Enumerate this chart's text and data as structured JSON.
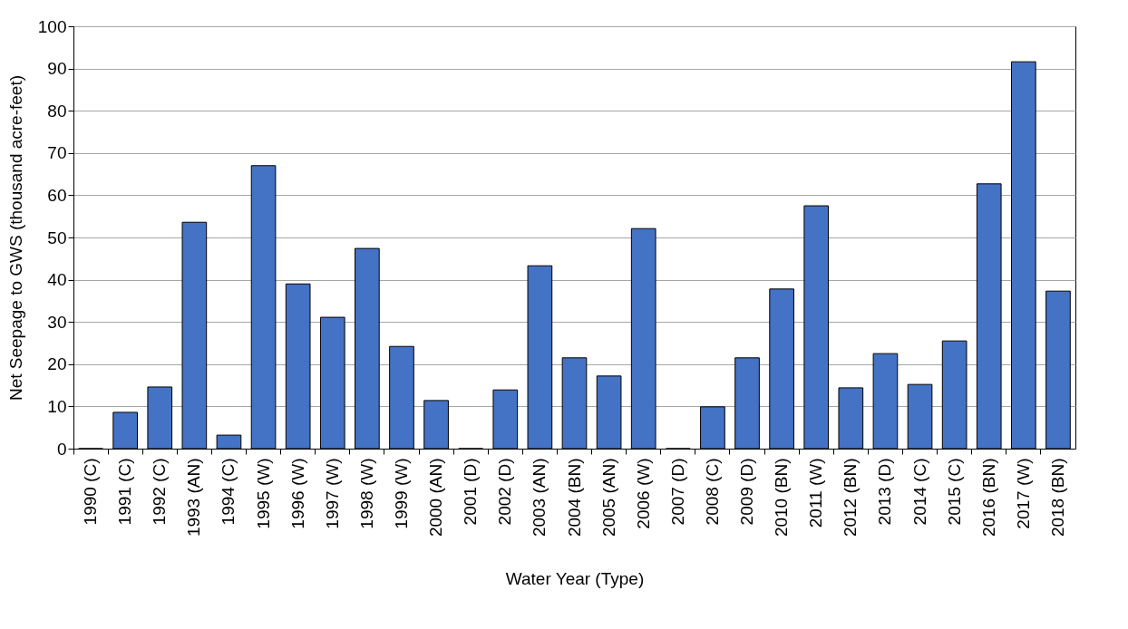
{
  "chart_data": {
    "type": "bar",
    "xlabel": "Water Year (Type)",
    "ylabel": "Net Seepage to GWS (thousand acre-feet)",
    "categories": [
      "1990 (C)",
      "1991 (C)",
      "1992 (C)",
      "1993 (AN)",
      "1994 (C)",
      "1995 (W)",
      "1996 (W)",
      "1997 (W)",
      "1998 (W)",
      "1999 (W)",
      "2000 (AN)",
      "2001 (D)",
      "2002 (D)",
      "2003 (AN)",
      "2004 (BN)",
      "2005 (AN)",
      "2006 (W)",
      "2007 (D)",
      "2008 (C)",
      "2009 (D)",
      "2010 (BN)",
      "2011 (W)",
      "2012 (BN)",
      "2013 (D)",
      "2014 (C)",
      "2015 (C)",
      "2016 (BN)",
      "2017 (W)",
      "2018 (BN)"
    ],
    "values": [
      0,
      8.6,
      14.6,
      53.6,
      3.2,
      67,
      39,
      31.1,
      47.4,
      24.2,
      11.4,
      0,
      13.9,
      43.3,
      21.5,
      17.2,
      52.1,
      0,
      9.9,
      21.5,
      37.8,
      57.5,
      14.4,
      22.5,
      15.2,
      25.5,
      62.7,
      91.6,
      37.3
    ],
    "color": "#4472c4",
    "ylim": [
      0,
      100
    ],
    "yticks": [
      0,
      10,
      20,
      30,
      40,
      50,
      60,
      70,
      80,
      90,
      100
    ],
    "grid": "y"
  }
}
